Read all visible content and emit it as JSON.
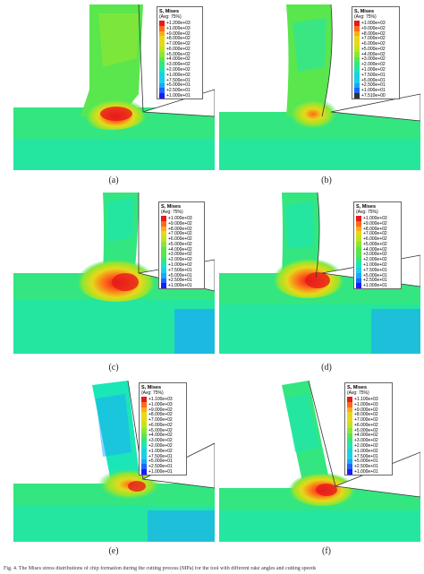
{
  "palette": [
    "#1a1aff",
    "#1a66ff",
    "#1aa6ff",
    "#1ad0e6",
    "#1ae6b8",
    "#33e680",
    "#5ae64d",
    "#8ce633",
    "#bfe61a",
    "#e6d91a",
    "#ffaa1a",
    "#ff6a1a",
    "#e61a1a"
  ],
  "legend_title": "S, Mises",
  "legend_avg": "(Avg: 75%)",
  "panels": [
    {
      "label": "(a)",
      "values": [
        "+1.200e+03",
        "+1.000e+03",
        "+9.000e+02",
        "+8.000e+02",
        "+7.000e+02",
        "+6.000e+02",
        "+5.000e+02",
        "+4.000e+02",
        "+3.000e+02",
        "+2.000e+02",
        "+1.000e+02",
        "+7.500e+01",
        "+5.000e+01",
        "+2.500e+01",
        "+1.000e+01"
      ]
    },
    {
      "label": "(b)",
      "values": [
        "+1.000e+03",
        "+9.000e+02",
        "+8.000e+02",
        "+7.000e+02",
        "+6.000e+02",
        "+5.000e+02",
        "+4.000e+02",
        "+3.000e+02",
        "+2.000e+02",
        "+1.000e+02",
        "+7.500e+01",
        "+5.000e+01",
        "+2.500e+01",
        "+1.000e+01",
        "+7.510e+00"
      ]
    },
    {
      "label": "(c)",
      "values": [
        "+1.000e+03",
        "+9.000e+02",
        "+8.000e+02",
        "+7.000e+02",
        "+6.000e+02",
        "+5.000e+02",
        "+4.000e+02",
        "+3.000e+02",
        "+2.000e+02",
        "+1.000e+02",
        "+7.500e+01",
        "+5.000e+01",
        "+2.500e+01",
        "+1.000e+01"
      ]
    },
    {
      "label": "(d)",
      "values": [
        "+1.000e+03",
        "+9.000e+02",
        "+8.000e+02",
        "+7.000e+02",
        "+6.000e+02",
        "+5.000e+02",
        "+4.000e+02",
        "+3.000e+02",
        "+2.000e+02",
        "+1.000e+02",
        "+7.500e+01",
        "+5.000e+01",
        "+2.500e+01",
        "+1.000e+01"
      ]
    },
    {
      "label": "(e)",
      "values": [
        "+1.100e+03",
        "+1.000e+03",
        "+9.000e+02",
        "+8.000e+02",
        "+7.000e+02",
        "+6.000e+02",
        "+5.000e+02",
        "+4.000e+02",
        "+3.000e+02",
        "+2.000e+02",
        "+1.000e+02",
        "+7.500e+01",
        "+5.000e+01",
        "+2.500e+01",
        "+1.000e+01"
      ]
    },
    {
      "label": "(f)",
      "values": [
        "+1.100e+03",
        "+1.000e+03",
        "+9.000e+02",
        "+8.000e+02",
        "+7.000e+02",
        "+6.000e+02",
        "+5.000e+02",
        "+4.000e+02",
        "+3.000e+02",
        "+2.000e+02",
        "+1.000e+02",
        "+7.500e+01",
        "+5.000e+01",
        "+2.500e+01",
        "+1.000e+01"
      ]
    }
  ],
  "footer": "Fig. 4. The Mises stress distributions of chip formation during the cutting process (MPa) for the tool with different rake angles and cutting speeds"
}
